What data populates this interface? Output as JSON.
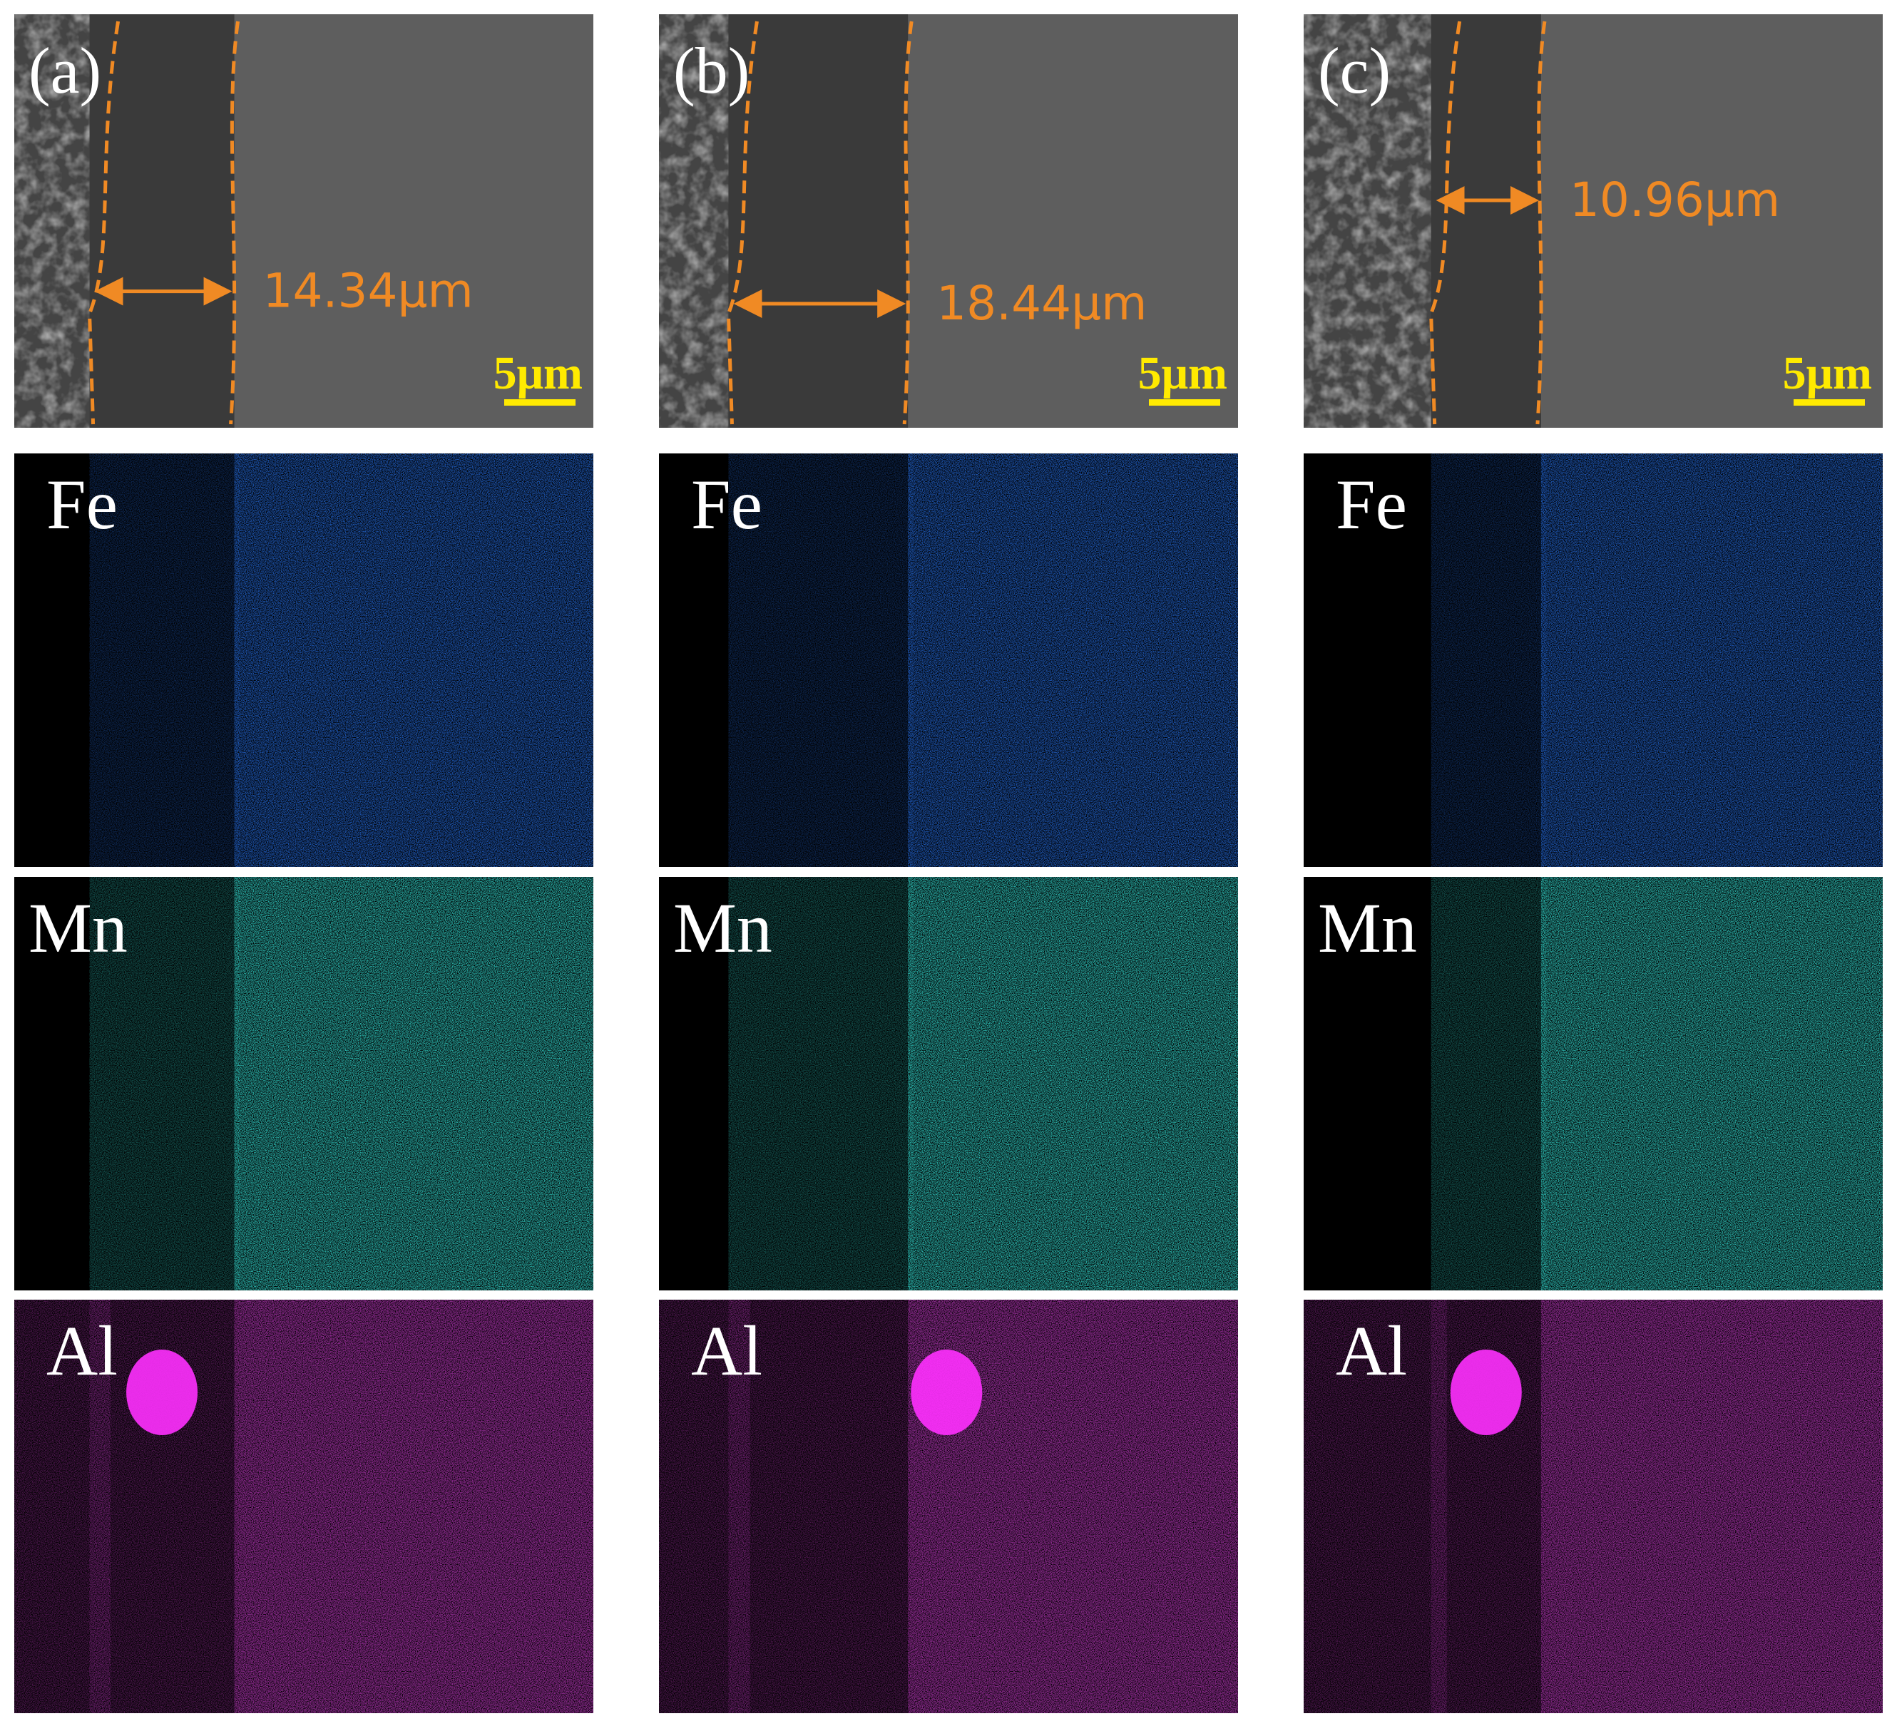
{
  "panels": [
    {
      "label": "(a)",
      "thickness": "14.34μm",
      "scale_bar": "5μm",
      "maps": [
        "Fe",
        "Mn",
        "Al"
      ]
    },
    {
      "label": "(b)",
      "thickness": "18.44μm",
      "scale_bar": "5μm",
      "maps": [
        "Fe",
        "Mn",
        "Al"
      ]
    },
    {
      "label": "(c)",
      "thickness": "10.96μm",
      "scale_bar": "5μm",
      "maps": [
        "Fe",
        "Mn",
        "Al"
      ]
    }
  ]
}
